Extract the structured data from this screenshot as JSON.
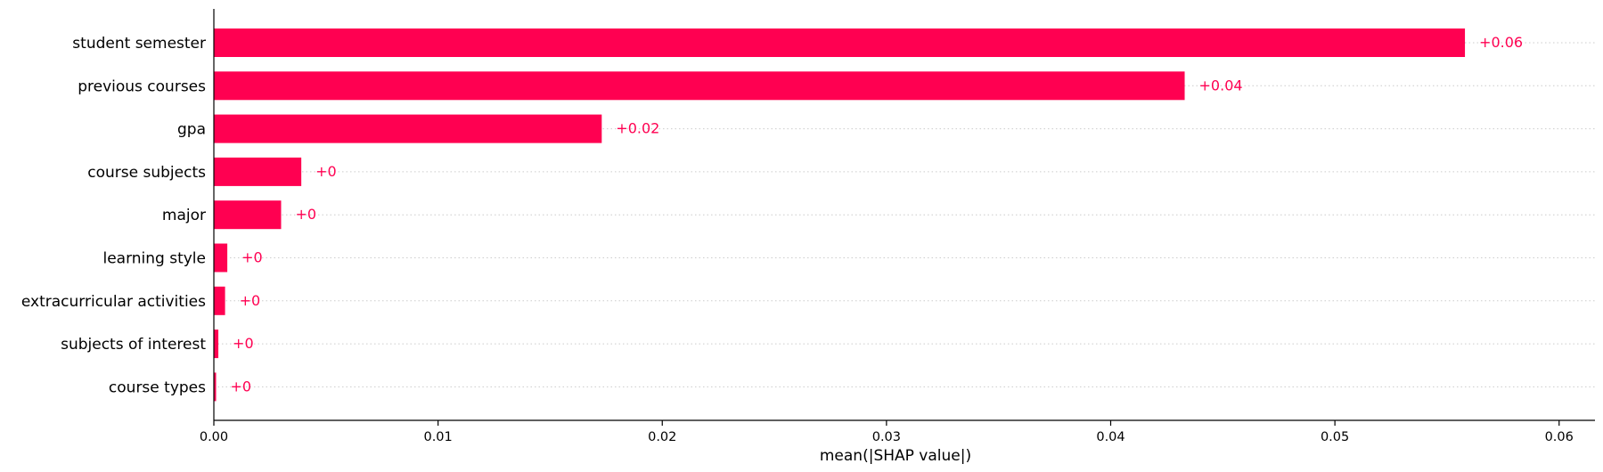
{
  "chart_data": {
    "type": "bar",
    "orientation": "horizontal",
    "categories": [
      "student semester",
      "previous courses",
      "gpa",
      "course subjects",
      "major",
      "learning style",
      "extracurricular activities",
      "subjects of interest",
      "course types"
    ],
    "values": [
      0.0558,
      0.0433,
      0.0173,
      0.0039,
      0.003,
      0.0006,
      0.0005,
      0.0002,
      0.0001
    ],
    "data_labels": [
      "+0.06",
      "+0.04",
      "+0.02",
      "+0",
      "+0",
      "+0",
      "+0",
      "+0",
      "+0"
    ],
    "xlabel": "mean(|SHAP value|)",
    "xlim": [
      0,
      0.0616
    ],
    "xticks": [
      0,
      0.01,
      0.02,
      0.03,
      0.04,
      0.05,
      0.06
    ],
    "xtick_labels": [
      "0.00",
      "0.01",
      "0.02",
      "0.03",
      "0.04",
      "0.05",
      "0.06"
    ],
    "grid": "dotted horizontal row lines",
    "colors": {
      "bar": "#ff0051",
      "label": "#ff0051",
      "axis": "#000000",
      "grid": "#cccccc"
    }
  }
}
